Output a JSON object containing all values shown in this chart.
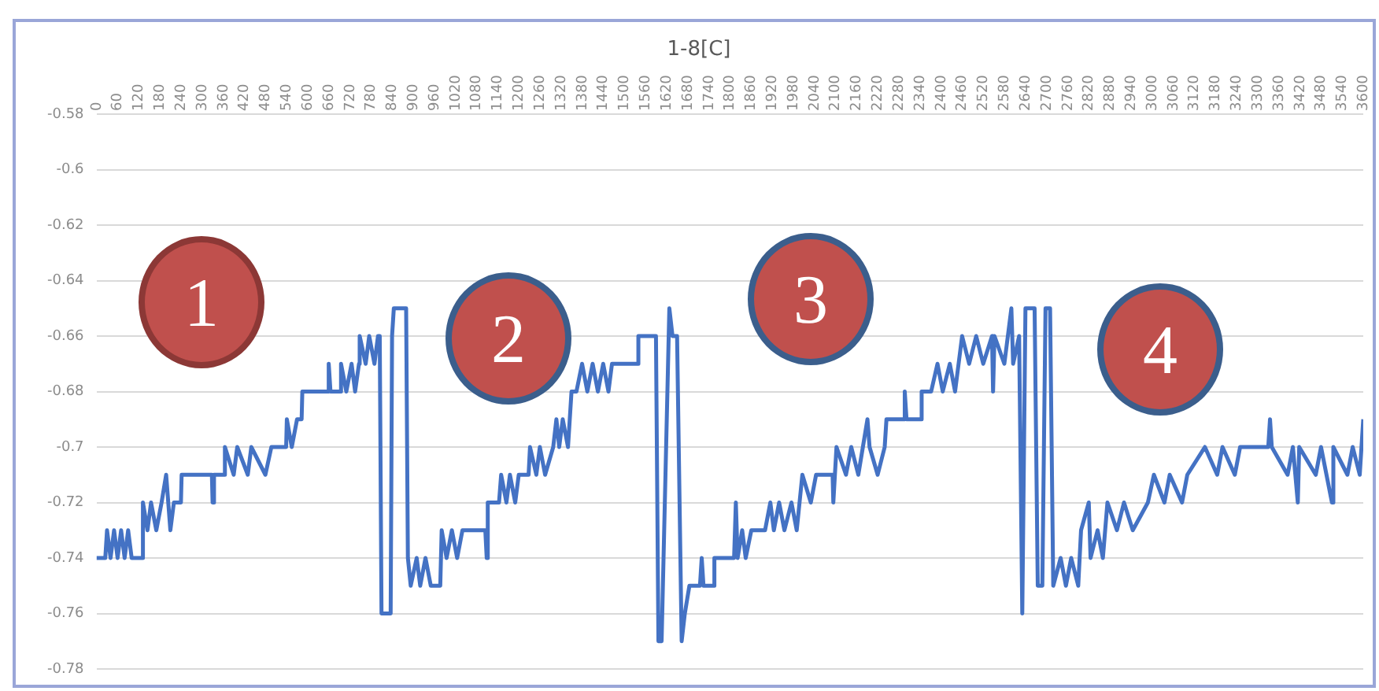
{
  "chart_data": {
    "type": "line",
    "title": "1-8[C]",
    "x": [
      0,
      25,
      30,
      40,
      50,
      60,
      70,
      80,
      90,
      100,
      130,
      132,
      145,
      155,
      170,
      185,
      198,
      210,
      220,
      240,
      242,
      328,
      330,
      334,
      363,
      365,
      390,
      400,
      430,
      440,
      480,
      497,
      539,
      541,
      555,
      570,
      583,
      585,
      657,
      660,
      665,
      693,
      695,
      710,
      725,
      735,
      746,
      748,
      765,
      775,
      790,
      800,
      805,
      810,
      836,
      840,
      845,
      880,
      885,
      893,
      910,
      920,
      935,
      950,
      977,
      981,
      995,
      1010,
      1025,
      1040,
      1105,
      1109,
      1112,
      1144,
      1150,
      1165,
      1175,
      1190,
      1200,
      1228,
      1232,
      1250,
      1260,
      1275,
      1298,
      1307,
      1315,
      1325,
      1340,
      1350,
      1364,
      1380,
      1395,
      1410,
      1425,
      1440,
      1455,
      1465,
      1538,
      1540,
      1590,
      1597,
      1606,
      1628,
      1637,
      1650,
      1663,
      1672,
      1685,
      1715,
      1720,
      1725,
      1754,
      1756,
      1812,
      1817,
      1822,
      1835,
      1845,
      1861,
      1900,
      1915,
      1925,
      1940,
      1955,
      1975,
      1990,
      2006,
      2030,
      2045,
      2092,
      2094,
      2103,
      2130,
      2145,
      2165,
      2191,
      2197,
      2220,
      2240,
      2245,
      2295,
      2297,
      2302,
      2343,
      2345,
      2372,
      2390,
      2405,
      2425,
      2440,
      2460,
      2480,
      2500,
      2520,
      2545,
      2548,
      2552,
      2580,
      2600,
      2605,
      2622,
      2631,
      2640,
      2666,
      2675,
      2688,
      2697,
      2710,
      2719,
      2740,
      2755,
      2770,
      2790,
      2798,
      2820,
      2825,
      2845,
      2860,
      2873,
      2900,
      2920,
      2945,
      2988,
      3005,
      3035,
      3050,
      3085,
      3100,
      3150,
      3185,
      3200,
      3235,
      3250,
      3330,
      3335,
      3340,
      3385,
      3400,
      3414,
      3418,
      3465,
      3480,
      3511,
      3515,
      3555,
      3570,
      3590,
      3600
    ],
    "values": [
      -0.74,
      -0.74,
      -0.73,
      -0.74,
      -0.73,
      -0.74,
      -0.73,
      -0.74,
      -0.73,
      -0.74,
      -0.74,
      -0.72,
      -0.73,
      -0.72,
      -0.73,
      -0.72,
      -0.71,
      -0.73,
      -0.72,
      -0.72,
      -0.71,
      -0.71,
      -0.72,
      -0.71,
      -0.71,
      -0.7,
      -0.71,
      -0.7,
      -0.71,
      -0.7,
      -0.71,
      -0.7,
      -0.7,
      -0.69,
      -0.7,
      -0.69,
      -0.69,
      -0.68,
      -0.68,
      -0.67,
      -0.68,
      -0.68,
      -0.67,
      -0.68,
      -0.67,
      -0.68,
      -0.67,
      -0.66,
      -0.67,
      -0.66,
      -0.67,
      -0.66,
      -0.66,
      -0.76,
      -0.76,
      -0.66,
      -0.65,
      -0.65,
      -0.74,
      -0.75,
      -0.74,
      -0.75,
      -0.74,
      -0.75,
      -0.75,
      -0.73,
      -0.74,
      -0.73,
      -0.74,
      -0.73,
      -0.73,
      -0.74,
      -0.72,
      -0.72,
      -0.71,
      -0.72,
      -0.71,
      -0.72,
      -0.71,
      -0.71,
      -0.7,
      -0.71,
      -0.7,
      -0.71,
      -0.7,
      -0.69,
      -0.7,
      -0.69,
      -0.7,
      -0.68,
      -0.68,
      -0.67,
      -0.68,
      -0.67,
      -0.68,
      -0.67,
      -0.68,
      -0.67,
      -0.67,
      -0.66,
      -0.66,
      -0.77,
      -0.77,
      -0.65,
      -0.66,
      -0.66,
      -0.77,
      -0.76,
      -0.75,
      -0.75,
      -0.74,
      -0.75,
      -0.75,
      -0.74,
      -0.74,
      -0.72,
      -0.74,
      -0.73,
      -0.74,
      -0.73,
      -0.73,
      -0.72,
      -0.73,
      -0.72,
      -0.73,
      -0.72,
      -0.73,
      -0.71,
      -0.72,
      -0.71,
      -0.71,
      -0.72,
      -0.7,
      -0.71,
      -0.7,
      -0.71,
      -0.69,
      -0.7,
      -0.71,
      -0.7,
      -0.69,
      -0.69,
      -0.68,
      -0.69,
      -0.69,
      -0.68,
      -0.68,
      -0.67,
      -0.68,
      -0.67,
      -0.68,
      -0.66,
      -0.67,
      -0.66,
      -0.67,
      -0.66,
      -0.68,
      -0.66,
      -0.67,
      -0.65,
      -0.67,
      -0.66,
      -0.76,
      -0.65,
      -0.65,
      -0.75,
      -0.75,
      -0.65,
      -0.65,
      -0.75,
      -0.74,
      -0.75,
      -0.74,
      -0.75,
      -0.73,
      -0.72,
      -0.74,
      -0.73,
      -0.74,
      -0.72,
      -0.73,
      -0.72,
      -0.73,
      -0.72,
      -0.71,
      -0.72,
      -0.71,
      -0.72,
      -0.71,
      -0.7,
      -0.71,
      -0.7,
      -0.71,
      -0.7,
      -0.7,
      -0.69,
      -0.7,
      -0.71,
      -0.7,
      -0.72,
      -0.7,
      -0.71,
      -0.7,
      -0.72,
      -0.7,
      -0.71,
      -0.7,
      -0.71,
      -0.69
    ],
    "color": "#4472c4",
    "xlim": [
      0,
      3600
    ],
    "xticks": [
      0,
      60,
      120,
      180,
      240,
      300,
      360,
      420,
      480,
      540,
      600,
      660,
      720,
      780,
      840,
      900,
      960,
      1020,
      1080,
      1140,
      1200,
      1260,
      1320,
      1380,
      1440,
      1500,
      1560,
      1620,
      1680,
      1740,
      1800,
      1860,
      1920,
      1980,
      2040,
      2100,
      2160,
      2220,
      2280,
      2340,
      2400,
      2460,
      2520,
      2580,
      2640,
      2700,
      2760,
      2820,
      2880,
      2940,
      3000,
      3060,
      3120,
      3180,
      3240,
      3300,
      3360,
      3420,
      3480,
      3540,
      3600
    ],
    "ylim": [
      -0.78,
      -0.58
    ],
    "yticks": [
      -0.78,
      -0.76,
      -0.74,
      -0.72,
      -0.7,
      -0.68,
      -0.66,
      -0.64,
      -0.62,
      -0.6,
      -0.58
    ],
    "grid": "y",
    "legend": false,
    "marker": "none",
    "line_style": "solid",
    "annotations": [
      "1",
      "2",
      "3",
      "4"
    ]
  }
}
